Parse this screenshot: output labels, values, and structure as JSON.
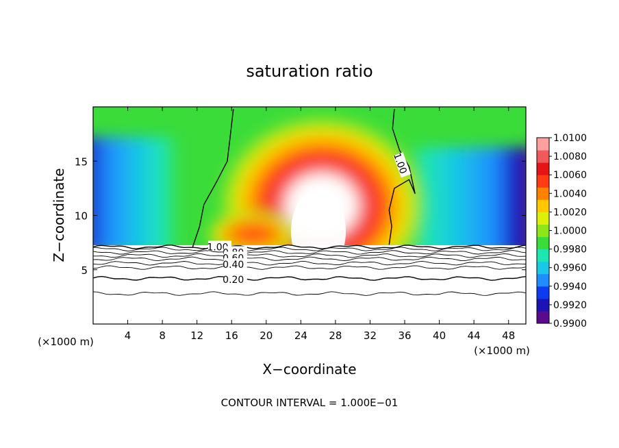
{
  "chart_data": {
    "type": "heatmap",
    "title": "saturation ratio",
    "xlabel": "X−coordinate",
    "ylabel": "Z−coordinate",
    "x_unit_left": "(×1000 m)",
    "x_unit_right": "(×1000 m)",
    "footer": "CONTOUR INTERVAL = 1.000E−01",
    "xlim": [
      0,
      50
    ],
    "ylim": [
      0,
      20
    ],
    "x_ticks": [
      4,
      8,
      12,
      16,
      20,
      24,
      28,
      32,
      36,
      40,
      44,
      48
    ],
    "y_ticks": [
      5,
      10,
      15
    ],
    "colorbar": {
      "min": 0.99,
      "max": 1.01,
      "tick_labels": [
        "1.0100",
        "1.0080",
        "1.0060",
        "1.0040",
        "1.0020",
        "1.0000",
        "0.9980",
        "0.9960",
        "0.9940",
        "0.9920",
        "0.9900"
      ],
      "colors": [
        "#5a0a8c",
        "#1a14b4",
        "#0b3cf0",
        "#1f8cff",
        "#18c8e6",
        "#1ee6b0",
        "#3adc3a",
        "#8ee618",
        "#dcf00a",
        "#ffc800",
        "#ff8200",
        "#ff3c14",
        "#e61414",
        "#f05a5a",
        "#ffa0a0"
      ]
    },
    "contour_labels": [
      {
        "label": "1.00",
        "x": 14.4,
        "z": 7.1
      },
      {
        "label": "0.80",
        "x": 16.2,
        "z": 6.6
      },
      {
        "label": "0.60",
        "x": 16.2,
        "z": 6.1
      },
      {
        "label": "0.40",
        "x": 16.2,
        "z": 5.5
      },
      {
        "label": "0.20",
        "x": 16.2,
        "z": 4.1
      },
      {
        "label": "1.00",
        "x": 35.5,
        "z": 14.8
      }
    ],
    "saturated_boundary_z": 7.1
  }
}
